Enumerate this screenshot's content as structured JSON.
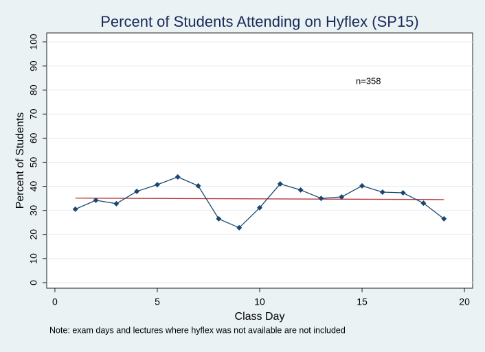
{
  "chart_data": {
    "type": "line",
    "title": "Percent of Students Attending on Hyflex (SP15)",
    "x_label": "Class Day",
    "y_label": "Percent of Students",
    "note": "Note: exam days and lectures where hyflex was not available are not included",
    "annotation": "n=358",
    "x": [
      1,
      2,
      3,
      4,
      5,
      6,
      7,
      8,
      9,
      10,
      11,
      12,
      13,
      14,
      15,
      16,
      17,
      18,
      19
    ],
    "series": [
      {
        "color": "#1a476f",
        "values": [
          30.5,
          34.2,
          32.8,
          37.9,
          40.7,
          43.9,
          40.2,
          26.5,
          22.8,
          31.1,
          41.0,
          38.5,
          35.0,
          35.6,
          40.2,
          37.6,
          37.3,
          33.0,
          26.5
        ]
      }
    ],
    "fit": {
      "color": "#b5373d",
      "x": [
        1,
        19
      ],
      "values": [
        35.1,
        34.5
      ]
    },
    "xlim": [
      -0.4,
      20.4
    ],
    "ylim": [
      -2.3,
      103.7
    ],
    "xticks": [
      0,
      5,
      10,
      15,
      20
    ],
    "yticks": [
      0,
      10,
      20,
      30,
      40,
      50,
      60,
      70,
      80,
      90,
      100
    ],
    "grid": true
  }
}
